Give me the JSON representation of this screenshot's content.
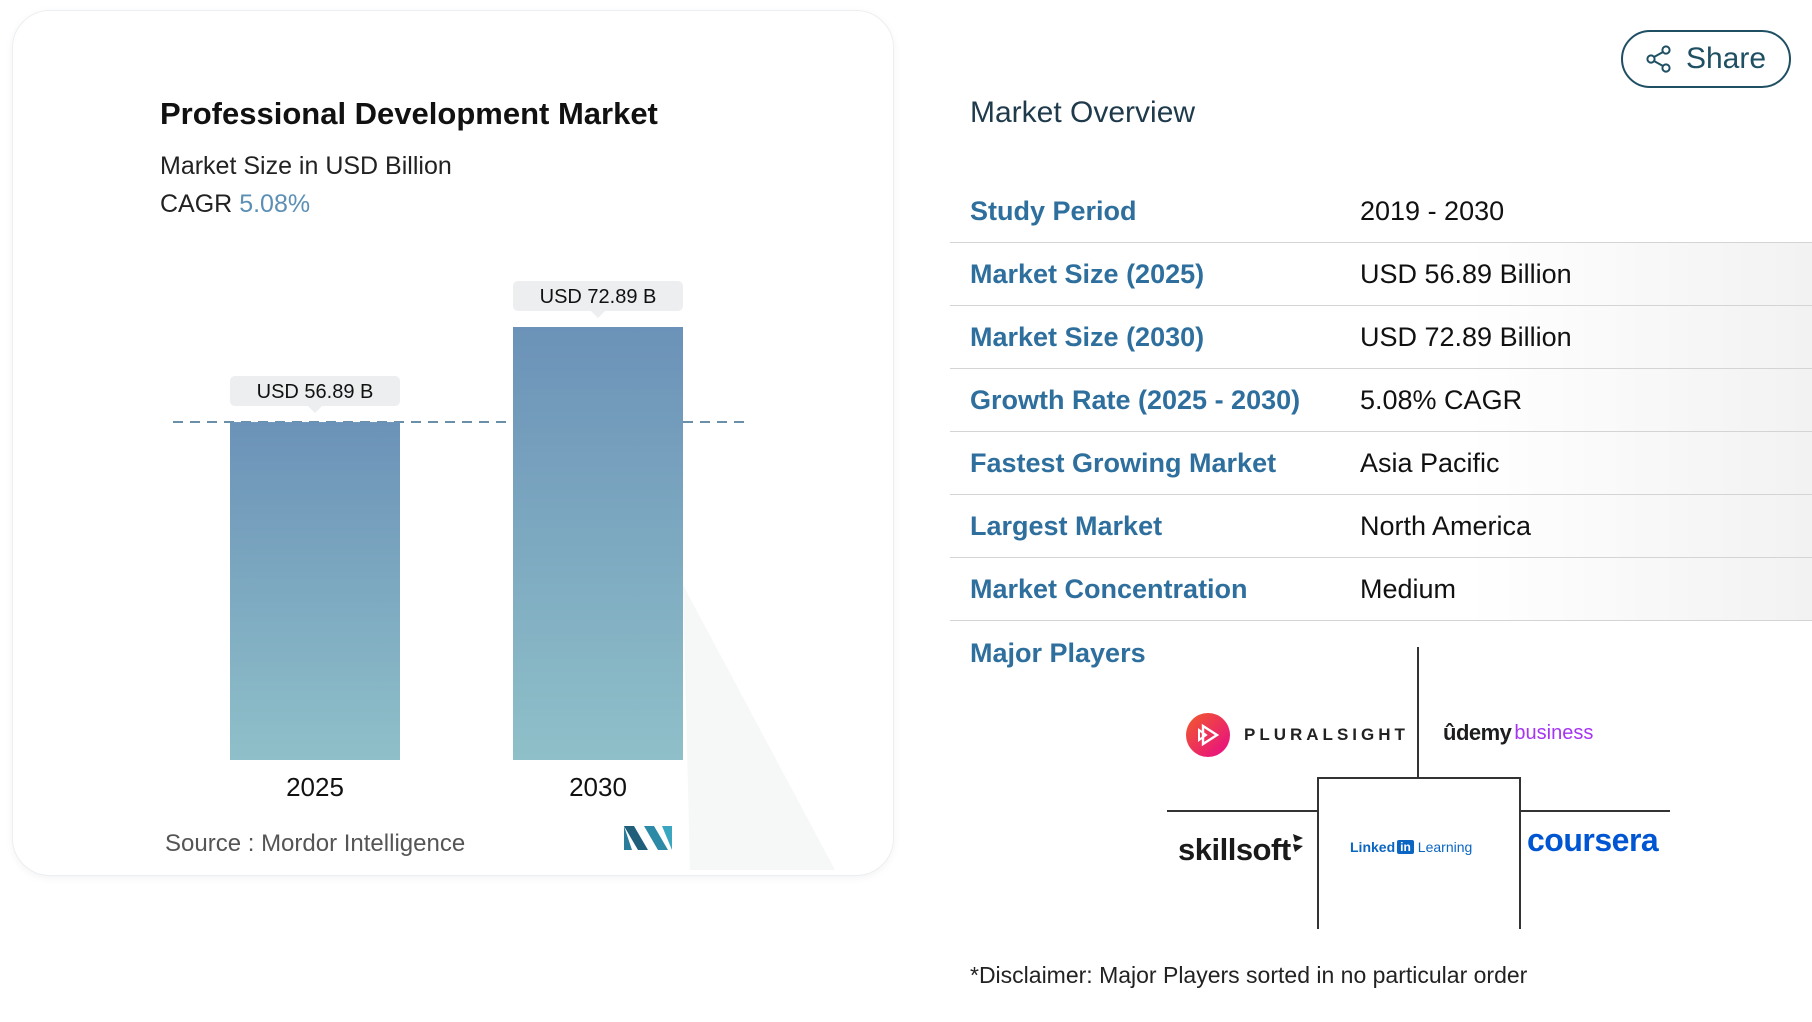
{
  "chart_data": {
    "type": "bar",
    "title": "Professional Development Market",
    "subtitle": "Market Size in USD Billion",
    "cagr_label": "CAGR",
    "cagr_value": "5.08%",
    "categories": [
      "2025",
      "2030"
    ],
    "values": [
      56.89,
      72.89
    ],
    "data_labels": [
      "USD 56.89 B",
      "USD 72.89 B"
    ],
    "colors": {
      "bar_top": "#6b92b8",
      "bar_bottom": "#8fc0c9",
      "label_bg": "#eceeef",
      "dashed_line": "#6a8fa8"
    },
    "grid": false,
    "legend": "none"
  },
  "source": {
    "label": "Source :",
    "value": "Mordor Intelligence"
  },
  "share_button": {
    "label": "Share",
    "icon": "share-icon"
  },
  "overview": {
    "title": "Market Overview",
    "rows": [
      {
        "label": "Study Period",
        "value": "2019 - 2030"
      },
      {
        "label": "Market Size (2025)",
        "value": "USD 56.89 Billion"
      },
      {
        "label": "Market Size (2030)",
        "value": "USD 72.89 Billion"
      },
      {
        "label": "Growth Rate (2025 - 2030)",
        "value": "5.08% CAGR"
      },
      {
        "label": "Fastest Growing Market",
        "value": "Asia Pacific"
      },
      {
        "label": "Largest Market",
        "value": "North America"
      },
      {
        "label": "Market Concentration",
        "value": "Medium"
      }
    ]
  },
  "major_players": {
    "title": "Major Players",
    "players": [
      "PLURALSIGHT",
      "udemy business",
      "skillsoft",
      "LinkedIn Learning",
      "coursera"
    ],
    "logo_parts": {
      "udemy": "ûdemy",
      "business": "business",
      "linkedin_text": "Linked",
      "linkedin_in": "in",
      "learning": "Learning"
    },
    "disclaimer": "*Disclaimer: Major Players sorted in no particular order"
  }
}
